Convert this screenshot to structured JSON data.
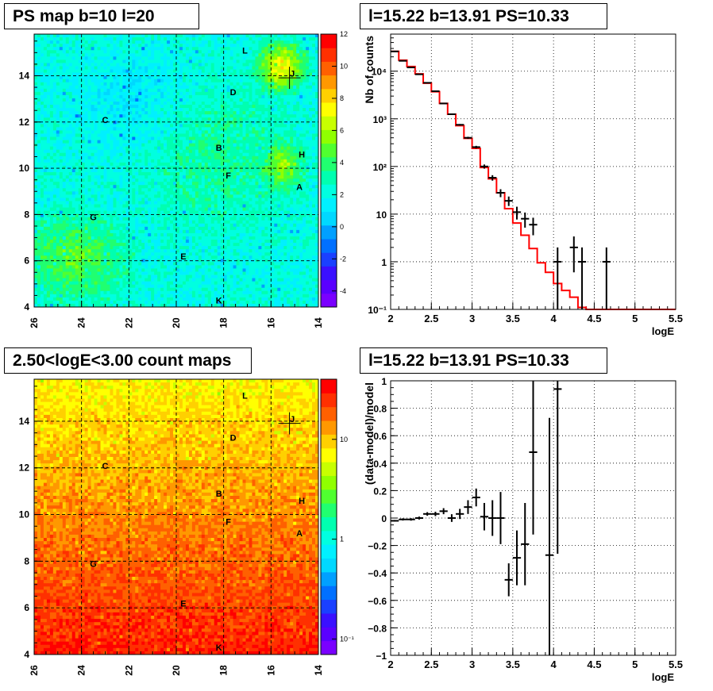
{
  "panels": {
    "ps_map": {
      "title": "PS map b=10 l=20",
      "x_ticks": [
        "26",
        "24",
        "22",
        "20",
        "18",
        "16",
        "14"
      ],
      "y_ticks": [
        "4",
        "6",
        "8",
        "10",
        "12",
        "14"
      ],
      "colorbar_ticks": [
        "12",
        "10",
        "8",
        "6",
        "4",
        "2",
        "0",
        "-2",
        "-4"
      ],
      "colorscale": [
        "#7a00ff",
        "#5a00ff",
        "#3a10ff",
        "#1a40ff",
        "#0070ff",
        "#00a0ff",
        "#00d8ff",
        "#00f0ff",
        "#00ffe0",
        "#00ffb0",
        "#20ff70",
        "#50ff30",
        "#90ff00",
        "#c8ff00",
        "#ffff00",
        "#ffd000",
        "#ff9800",
        "#ff6000",
        "#ff3000",
        "#ff0000"
      ]
    },
    "count_map": {
      "title": "2.50<logE<3.00 count maps",
      "x_ticks": [
        "26",
        "24",
        "22",
        "20",
        "18",
        "16",
        "14"
      ],
      "y_ticks": [
        "4",
        "6",
        "8",
        "10",
        "12",
        "14"
      ],
      "colorbar_ticks": [
        "10",
        "1",
        "10⁻¹"
      ]
    },
    "spectrum": {
      "title": "l=15.22 b=13.91 PS=10.33",
      "xlabel": "logE",
      "ylabel": "Nb of counts",
      "x_ticks": [
        "2",
        "2.5",
        "3",
        "3.5",
        "4",
        "4.5",
        "5",
        "5.5"
      ],
      "y_ticks": [
        "10⁻¹",
        "1",
        "10",
        "10²",
        "10³",
        "10⁴"
      ]
    },
    "residual": {
      "title": "l=15.22 b=13.91 PS=10.33",
      "xlabel": "logE",
      "ylabel": "(data-model)/model",
      "x_ticks": [
        "2",
        "2.5",
        "3",
        "3.5",
        "4",
        "4.5",
        "5",
        "5.5"
      ],
      "y_ticks": [
        "1",
        "0.8",
        "0.6",
        "0.4",
        "0.2",
        "0",
        "−0.2",
        "−0.4",
        "−0.6",
        "−0.8",
        "−1"
      ]
    }
  },
  "chart_data": [
    {
      "type": "heatmap",
      "title": "PS map b=10 l=20",
      "xlim": [
        26,
        14
      ],
      "ylim": [
        4,
        15.8
      ],
      "zlim": [
        -5,
        12
      ],
      "grid": true,
      "sources": [
        {
          "name": "L",
          "l": 17.1,
          "b": 15.1
        },
        {
          "name": "J",
          "l": 15.1,
          "b": 14.1
        },
        {
          "name": "D",
          "l": 17.6,
          "b": 13.3
        },
        {
          "name": "C",
          "l": 23.0,
          "b": 12.1
        },
        {
          "name": "B",
          "l": 18.2,
          "b": 10.9
        },
        {
          "name": "H",
          "l": 14.7,
          "b": 10.6
        },
        {
          "name": "F",
          "l": 17.8,
          "b": 9.7
        },
        {
          "name": "A",
          "l": 14.8,
          "b": 9.2
        },
        {
          "name": "G",
          "l": 23.5,
          "b": 7.9
        },
        {
          "name": "E",
          "l": 19.7,
          "b": 6.2
        },
        {
          "name": "K",
          "l": 18.2,
          "b": 4.3
        }
      ],
      "marker": {
        "l": 15.22,
        "b": 13.91
      }
    },
    {
      "type": "heatmap",
      "title": "2.50<logE<3.00 count maps",
      "xlim": [
        26,
        14
      ],
      "ylim": [
        4,
        15.8
      ],
      "zscale": "log",
      "zlim": [
        0.07,
        40
      ],
      "grid": true,
      "sources": [
        {
          "name": "L",
          "l": 17.1,
          "b": 15.1
        },
        {
          "name": "J",
          "l": 15.1,
          "b": 14.1
        },
        {
          "name": "D",
          "l": 17.6,
          "b": 13.3
        },
        {
          "name": "C",
          "l": 23.0,
          "b": 12.1
        },
        {
          "name": "B",
          "l": 18.2,
          "b": 10.9
        },
        {
          "name": "H",
          "l": 14.7,
          "b": 10.6
        },
        {
          "name": "F",
          "l": 17.8,
          "b": 9.7
        },
        {
          "name": "A",
          "l": 14.8,
          "b": 9.2
        },
        {
          "name": "G",
          "l": 23.5,
          "b": 7.9
        },
        {
          "name": "E",
          "l": 19.7,
          "b": 6.2
        },
        {
          "name": "K",
          "l": 18.2,
          "b": 4.3
        }
      ],
      "marker": {
        "l": 15.22,
        "b": 13.91
      }
    },
    {
      "type": "line",
      "title": "l=15.22 b=13.91 PS=10.33",
      "xlabel": "logE",
      "ylabel": "Nb of counts",
      "xlim": [
        2,
        5.5
      ],
      "ylim": [
        0.1,
        60000
      ],
      "yscale": "log",
      "grid": true,
      "series": [
        {
          "kind": "model-step",
          "color": "#ff0000",
          "x_edges": [
            2.0,
            2.1,
            2.2,
            2.3,
            2.4,
            2.5,
            2.6,
            2.7,
            2.8,
            2.9,
            3.0,
            3.1,
            3.2,
            3.3,
            3.4,
            3.5,
            3.6,
            3.7,
            3.8,
            3.9,
            4.0,
            4.1,
            4.2,
            4.3,
            4.4,
            4.5,
            4.6,
            4.7,
            4.8,
            4.9,
            5.0,
            5.1,
            5.2,
            5.3,
            5.4,
            5.5
          ],
          "values": [
            26000,
            17000,
            12500,
            8800,
            5600,
            3700,
            2100,
            1250,
            720,
            390,
            240,
            95,
            55,
            28,
            13,
            6.5,
            3.6,
            1.9,
            0.95,
            0.6,
            0.35,
            0.25,
            0.18,
            0.11,
            0.1,
            0.1,
            0.1,
            0.1,
            0.1,
            0.1,
            0.1,
            0.1,
            0.1,
            0.1,
            0.1
          ]
        },
        {
          "kind": "data-points",
          "color": "#000000",
          "x": [
            2.05,
            2.15,
            2.25,
            2.35,
            2.45,
            2.55,
            2.65,
            2.75,
            2.85,
            2.95,
            3.05,
            3.15,
            3.25,
            3.35,
            3.45,
            3.55,
            3.65,
            3.75,
            4.05,
            4.25,
            4.35,
            4.65
          ],
          "y": [
            26000,
            16500,
            12000,
            8600,
            5700,
            3800,
            2100,
            1250,
            750,
            400,
            255,
            100,
            58,
            28,
            19,
            11,
            8,
            6,
            1,
            2,
            1,
            1
          ],
          "yerr_lo": [
            160,
            130,
            110,
            93,
            75,
            62,
            46,
            35,
            27,
            20,
            16,
            10,
            7.6,
            5.3,
            4.2,
            3.3,
            2.8,
            2.4,
            1,
            1.4,
            1,
            1
          ],
          "yerr_hi": [
            160,
            130,
            110,
            93,
            75,
            62,
            46,
            35,
            27,
            20,
            16,
            10,
            7.6,
            5.3,
            4.4,
            3.3,
            2.8,
            2.4,
            1,
            1.4,
            1,
            1
          ]
        }
      ]
    },
    {
      "type": "scatter",
      "title": "l=15.22 b=13.91 PS=10.33",
      "xlabel": "logE",
      "ylabel": "(data-model)/model",
      "xlim": [
        2,
        5.5
      ],
      "ylim": [
        -1,
        1
      ],
      "grid": true,
      "series": [
        {
          "kind": "residual-points",
          "color": "#000000",
          "x": [
            2.05,
            2.15,
            2.25,
            2.35,
            2.45,
            2.55,
            2.65,
            2.75,
            2.85,
            2.95,
            3.05,
            3.15,
            3.25,
            3.35,
            3.45,
            3.55,
            3.65,
            3.75,
            3.95,
            4.05
          ],
          "y": [
            -0.02,
            -0.01,
            -0.01,
            0.0,
            0.03,
            0.03,
            0.05,
            0.0,
            0.03,
            0.08,
            0.15,
            0.01,
            0.0,
            0.0,
            -0.45,
            -0.29,
            -0.19,
            0.48,
            -0.27,
            0.94
          ],
          "yerr": [
            0.006,
            0.008,
            0.009,
            0.011,
            0.013,
            0.016,
            0.022,
            0.028,
            0.037,
            0.05,
            0.065,
            0.1,
            0.13,
            0.19,
            0.12,
            0.2,
            0.3,
            0.6,
            1.0,
            1.2
          ]
        }
      ]
    }
  ]
}
